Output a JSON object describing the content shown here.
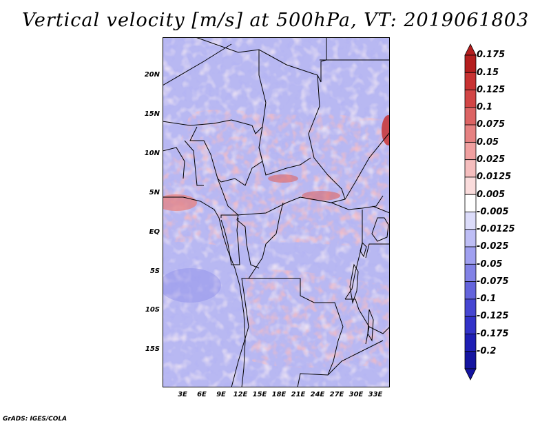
{
  "title": "Vertical velocity [m/s] at 500hPa, VT: 2019061803",
  "footer": "GrADS: IGES/COLA",
  "map": {
    "lat_ticks": [
      {
        "label": "20N",
        "value": 20
      },
      {
        "label": "15N",
        "value": 15
      },
      {
        "label": "10N",
        "value": 10
      },
      {
        "label": "5N",
        "value": 5
      },
      {
        "label": "EQ",
        "value": 0
      },
      {
        "label": "5S",
        "value": -5
      },
      {
        "label": "10S",
        "value": -10
      },
      {
        "label": "15S",
        "value": -15
      }
    ],
    "lon_ticks": [
      {
        "label": "3E",
        "value": 3
      },
      {
        "label": "6E",
        "value": 6
      },
      {
        "label": "9E",
        "value": 9
      },
      {
        "label": "12E",
        "value": 12
      },
      {
        "label": "15E",
        "value": 15
      },
      {
        "label": "18E",
        "value": 18
      },
      {
        "label": "21E",
        "value": 21
      },
      {
        "label": "24E",
        "value": 24
      },
      {
        "label": "27E",
        "value": 27
      },
      {
        "label": "30E",
        "value": 30
      },
      {
        "label": "33E",
        "value": 33
      }
    ],
    "lon_range": [
      0.3,
      35
    ],
    "lat_range": [
      -19.8,
      24.8
    ]
  },
  "colorbar": {
    "levels": [
      {
        "label": "0.175",
        "color": "#b41e1e"
      },
      {
        "label": "0.15",
        "color": "#c83232"
      },
      {
        "label": "0.125",
        "color": "#d24646"
      },
      {
        "label": "0.1",
        "color": "#dc6464"
      },
      {
        "label": "0.075",
        "color": "#e68282"
      },
      {
        "label": "0.05",
        "color": "#f0a0a0"
      },
      {
        "label": "0.025",
        "color": "#f5bebe"
      },
      {
        "label": "0.0125",
        "color": "#fadcdc"
      },
      {
        "label": "0.005",
        "color": "#ffffff"
      },
      {
        "label": "-0.005",
        "color": "#dcdcfa"
      },
      {
        "label": "-0.0125",
        "color": "#bebef5"
      },
      {
        "label": "-0.025",
        "color": "#a0a0f0"
      },
      {
        "label": "-0.05",
        "color": "#8282e6"
      },
      {
        "label": "-0.075",
        "color": "#6464dc"
      },
      {
        "label": "-0.1",
        "color": "#4646d2"
      },
      {
        "label": "-0.125",
        "color": "#3232c8"
      },
      {
        "label": "-0.175",
        "color": "#1e1eb4"
      },
      {
        "label": "-0.2",
        "color": "#1414a0"
      }
    ]
  }
}
